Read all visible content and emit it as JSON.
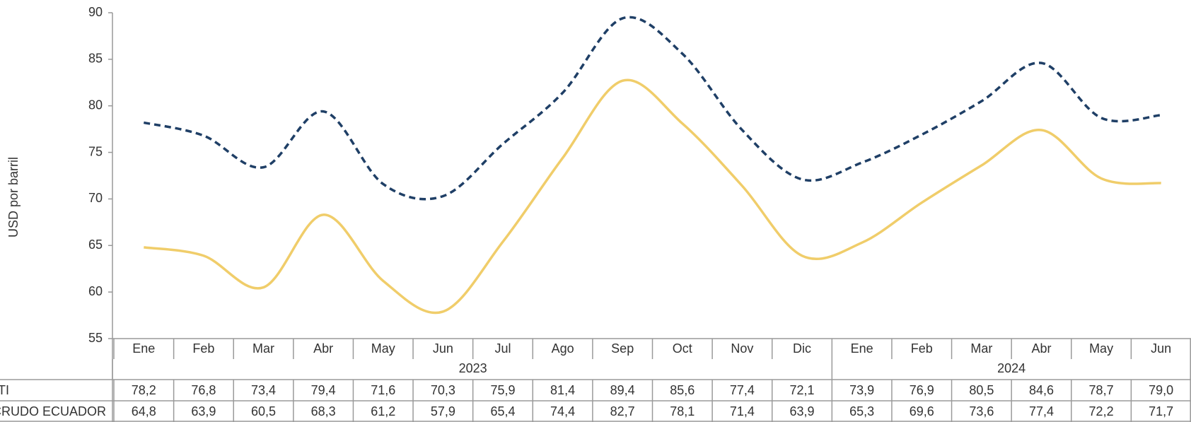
{
  "chart_data": {
    "type": "line",
    "y_label": "USD por barril",
    "categories": [
      "Ene",
      "Feb",
      "Mar",
      "Abr",
      "May",
      "Jun",
      "Jul",
      "Ago",
      "Sep",
      "Oct",
      "Nov",
      "Dic",
      "Ene",
      "Feb",
      "Mar",
      "Abr",
      "May",
      "Jun"
    ],
    "years": [
      "2023",
      "2023",
      "2023",
      "2023",
      "2023",
      "2023",
      "2023",
      "2023",
      "2023",
      "2023",
      "2023",
      "2023",
      "2024",
      "2024",
      "2024",
      "2024",
      "2024",
      "2024"
    ],
    "series": [
      {
        "name": "WTI",
        "color": "#1f3f66",
        "dashed": true,
        "values": [
          78.2,
          76.8,
          73.4,
          79.4,
          71.6,
          70.3,
          75.9,
          81.4,
          89.4,
          85.6,
          77.4,
          72.1,
          73.9,
          76.9,
          80.5,
          84.6,
          78.7,
          79.0
        ],
        "value_labels": [
          "78,2",
          "76,8",
          "73,4",
          "79,4",
          "71,6",
          "70,3",
          "75,9",
          "81,4",
          "89,4",
          "85,6",
          "77,4",
          "72,1",
          "73,9",
          "76,9",
          "80,5",
          "84,6",
          "78,7",
          "79,0"
        ]
      },
      {
        "name": "CRUDO ECUADOR",
        "color": "#f0cd6a",
        "dashed": false,
        "values": [
          64.8,
          63.9,
          60.5,
          68.3,
          61.2,
          57.9,
          65.4,
          74.4,
          82.7,
          78.1,
          71.4,
          63.9,
          65.3,
          69.6,
          73.6,
          77.4,
          72.2,
          71.7
        ],
        "value_labels": [
          "64,8",
          "63,9",
          "60,5",
          "68,3",
          "61,2",
          "57,9",
          "65,4",
          "74,4",
          "82,7",
          "78,1",
          "71,4",
          "63,9",
          "65,3",
          "69,6",
          "73,6",
          "77,4",
          "72,2",
          "71,7"
        ]
      }
    ],
    "ylim": [
      55,
      90
    ],
    "yticks": [
      55,
      60,
      65,
      70,
      75,
      80,
      85,
      90
    ],
    "grid": false
  }
}
